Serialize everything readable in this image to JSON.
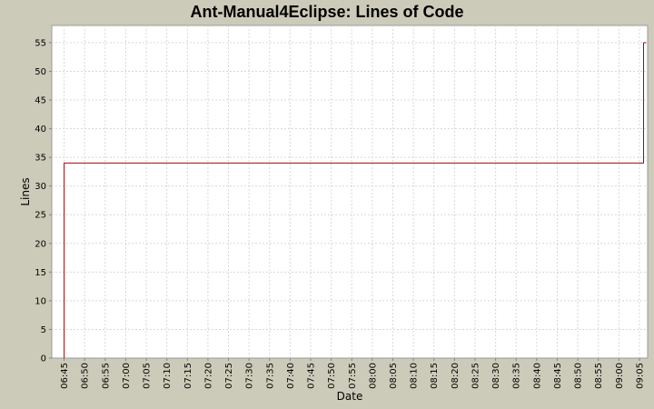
{
  "chart_data": {
    "type": "line",
    "step": true,
    "title": "Ant-Manual4Eclipse:  Lines of Code",
    "xlabel": "Date",
    "ylabel": "Lines",
    "ylim": [
      0,
      58
    ],
    "yticks": [
      0,
      5,
      10,
      15,
      20,
      25,
      30,
      35,
      40,
      45,
      50,
      55
    ],
    "xlim": [
      "06:42",
      "09:07"
    ],
    "xticks": [
      "06:45",
      "06:50",
      "06:55",
      "07:00",
      "07:05",
      "07:10",
      "07:15",
      "07:20",
      "07:25",
      "07:30",
      "07:35",
      "07:40",
      "07:45",
      "07:50",
      "07:55",
      "08:00",
      "08:05",
      "08:10",
      "08:15",
      "08:20",
      "08:25",
      "08:30",
      "08:35",
      "08:40",
      "08:45",
      "08:50",
      "08:55",
      "09:00",
      "09:05"
    ],
    "grid": true,
    "series": [
      {
        "color": "#b00000",
        "points": [
          {
            "x": "06:45",
            "y": 0
          },
          {
            "x": "06:45",
            "y": 34
          },
          {
            "x": "09:06",
            "y": 34
          },
          {
            "x": "09:06",
            "y": 55
          },
          {
            "x": "09:06",
            "y": 55
          }
        ]
      }
    ]
  },
  "colors": {
    "background": "#cccbb9",
    "plot_background": "#ffffff",
    "series": "#b00000"
  }
}
